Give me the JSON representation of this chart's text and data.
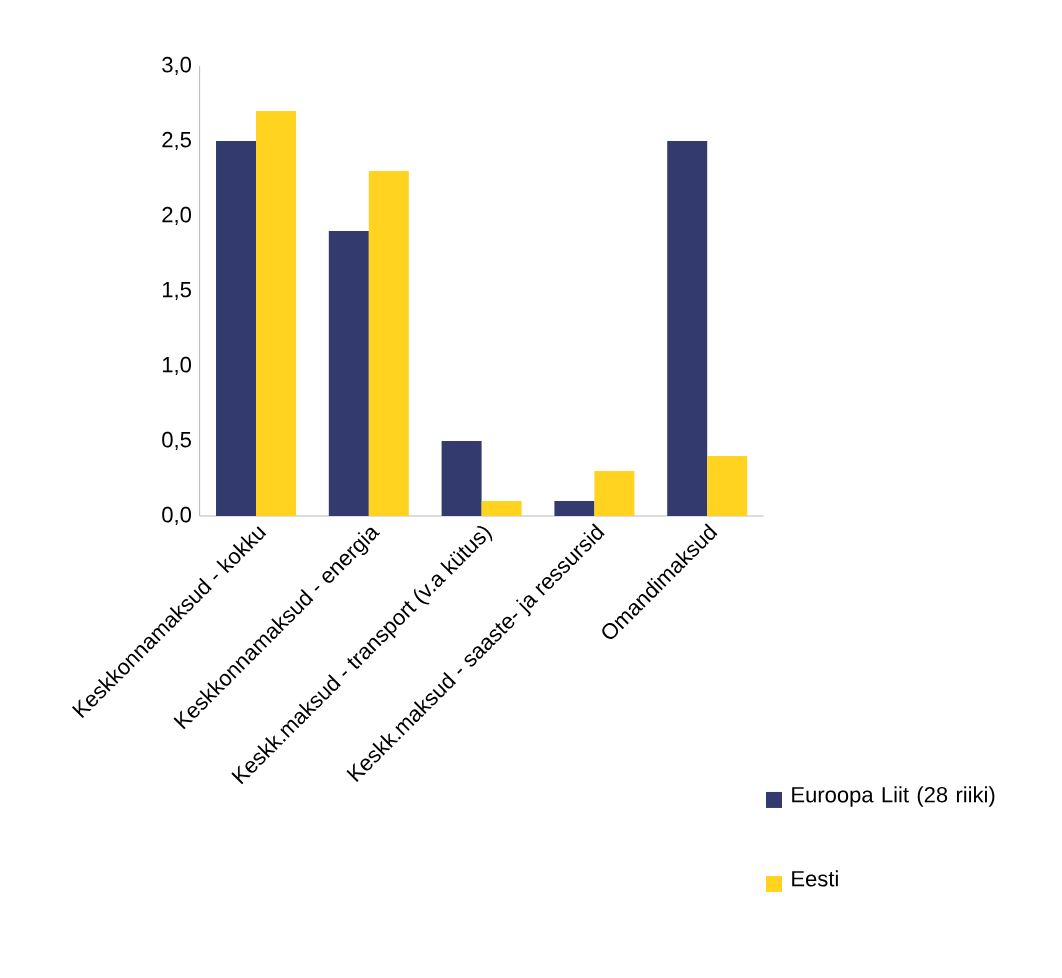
{
  "chart_data": {
    "type": "bar",
    "categories": [
      "Keskkonnamaksud - kokku",
      "Keskkonnamaksud - energia",
      "Keskk.maksud - transport (v.a kütus)",
      "Keskk.maksud - saaste- ja ressursid",
      "Omandimaksud"
    ],
    "series": [
      {
        "name": "Euroopa Liit (28 riiki)",
        "color": "#333b6e",
        "values": [
          2.5,
          1.9,
          0.5,
          0.1,
          2.5
        ]
      },
      {
        "name": "Eesti",
        "color": "#ffd320",
        "values": [
          2.7,
          2.3,
          0.1,
          0.3,
          0.4
        ]
      }
    ],
    "ylim": [
      0,
      3
    ],
    "yticks": [
      {
        "value": 0,
        "label": "0,0"
      },
      {
        "value": 0.5,
        "label": "0,5"
      },
      {
        "value": 1,
        "label": "1,0"
      },
      {
        "value": 1.5,
        "label": "1,5"
      },
      {
        "value": 2,
        "label": "2,0"
      },
      {
        "value": 2.5,
        "label": "2,5"
      },
      {
        "value": 3,
        "label": "3,0"
      }
    ],
    "legend": "bottom right"
  }
}
